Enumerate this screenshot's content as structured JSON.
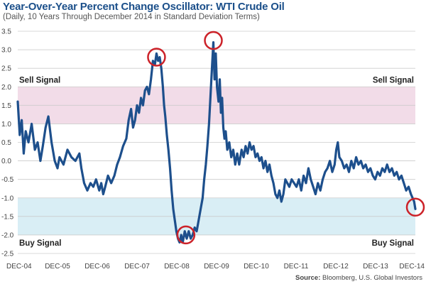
{
  "header": {
    "title": "Year-Over-Year Percent Change Oscillator: WTI Crude Oil",
    "subtitle": "(Daily, 10 Years Through December 2014 in Standard Deviation Terms)"
  },
  "footer": {
    "source_label": "Source:",
    "source_text": "Bloomberg, U.S. Global Investors"
  },
  "colors": {
    "line": "#1d4f8c",
    "sell_band": "#f2dce8",
    "buy_band": "#d9eef5",
    "highlight_circle": "#cc2229",
    "grid": "#cccccc"
  },
  "chart_data": {
    "type": "line",
    "title": "Year-Over-Year Percent Change Oscillator: WTI Crude Oil",
    "subtitle": "(Daily, 10 Years Through December 2014 in Standard Deviation Terms)",
    "xlabel": "",
    "ylabel": "",
    "ylim": [
      -2.5,
      3.5
    ],
    "yticks": [
      "3.5",
      "3.0",
      "2.5",
      "2.0",
      "1.5",
      "1.0",
      "0.5",
      "0.0",
      "-0.5",
      "-1.0",
      "-1.5",
      "-2.0",
      "-2.5"
    ],
    "xlim": [
      2004.95,
      2014.95
    ],
    "xticks": [
      {
        "label": "DEC-04",
        "x": 2004.95
      },
      {
        "label": "DEC-05",
        "x": 2005.95
      },
      {
        "label": "DEC-06",
        "x": 2006.95
      },
      {
        "label": "DEC-07",
        "x": 2007.95
      },
      {
        "label": "DEC-08",
        "x": 2008.95
      },
      {
        "label": "DEC-09",
        "x": 2009.95
      },
      {
        "label": "DEC-10",
        "x": 2010.95
      },
      {
        "label": "DEC-11",
        "x": 2011.95
      },
      {
        "label": "DEC-12",
        "x": 2012.95
      },
      {
        "label": "DEC-13",
        "x": 2013.95
      },
      {
        "label": "DEC-14",
        "x": 2014.95
      }
    ],
    "grid": true,
    "bands": [
      {
        "name": "Sell Signal",
        "from": 1.0,
        "to": 2.0
      },
      {
        "name": "Buy Signal",
        "from": -2.0,
        "to": -1.0
      }
    ],
    "band_labels": {
      "sell_left": "Sell Signal",
      "sell_right": "Sell Signal",
      "buy_left": "Buy Signal",
      "buy_right": "Buy Signal"
    },
    "series": [
      {
        "points": [
          [
            2004.95,
            1.6
          ],
          [
            2005.0,
            0.7
          ],
          [
            2005.05,
            1.1
          ],
          [
            2005.1,
            0.2
          ],
          [
            2005.15,
            0.8
          ],
          [
            2005.22,
            0.5
          ],
          [
            2005.3,
            1.0
          ],
          [
            2005.38,
            0.3
          ],
          [
            2005.45,
            0.5
          ],
          [
            2005.52,
            0.0
          ],
          [
            2005.58,
            0.4
          ],
          [
            2005.65,
            0.9
          ],
          [
            2005.72,
            1.2
          ],
          [
            2005.8,
            0.5
          ],
          [
            2005.88,
            0.0
          ],
          [
            2005.95,
            -0.2
          ],
          [
            2006.0,
            0.1
          ],
          [
            2006.1,
            -0.1
          ],
          [
            2006.2,
            0.3
          ],
          [
            2006.3,
            0.1
          ],
          [
            2006.4,
            0.0
          ],
          [
            2006.5,
            0.2
          ],
          [
            2006.55,
            -0.2
          ],
          [
            2006.62,
            -0.6
          ],
          [
            2006.7,
            -0.8
          ],
          [
            2006.78,
            -0.6
          ],
          [
            2006.85,
            -0.7
          ],
          [
            2006.92,
            -0.5
          ],
          [
            2007.0,
            -0.8
          ],
          [
            2007.05,
            -0.6
          ],
          [
            2007.1,
            -0.9
          ],
          [
            2007.15,
            -0.7
          ],
          [
            2007.22,
            -0.4
          ],
          [
            2007.3,
            -0.6
          ],
          [
            2007.38,
            -0.4
          ],
          [
            2007.45,
            -0.1
          ],
          [
            2007.52,
            0.1
          ],
          [
            2007.6,
            0.4
          ],
          [
            2007.68,
            0.6
          ],
          [
            2007.74,
            1.1
          ],
          [
            2007.8,
            1.4
          ],
          [
            2007.85,
            0.9
          ],
          [
            2007.9,
            1.1
          ],
          [
            2007.95,
            1.5
          ],
          [
            2008.0,
            1.3
          ],
          [
            2008.05,
            1.7
          ],
          [
            2008.1,
            1.5
          ],
          [
            2008.15,
            1.9
          ],
          [
            2008.2,
            2.0
          ],
          [
            2008.25,
            1.8
          ],
          [
            2008.3,
            2.2
          ],
          [
            2008.35,
            2.7
          ],
          [
            2008.4,
            2.6
          ],
          [
            2008.44,
            2.9
          ],
          [
            2008.48,
            2.7
          ],
          [
            2008.52,
            2.8
          ],
          [
            2008.56,
            2.5
          ],
          [
            2008.6,
            2.0
          ],
          [
            2008.63,
            1.5
          ],
          [
            2008.66,
            1.2
          ],
          [
            2008.7,
            0.7
          ],
          [
            2008.74,
            0.3
          ],
          [
            2008.78,
            -0.2
          ],
          [
            2008.82,
            -0.8
          ],
          [
            2008.86,
            -1.3
          ],
          [
            2008.9,
            -1.6
          ],
          [
            2008.94,
            -1.9
          ],
          [
            2008.98,
            -2.1
          ],
          [
            2009.02,
            -2.2
          ],
          [
            2009.06,
            -2.0
          ],
          [
            2009.1,
            -2.2
          ],
          [
            2009.15,
            -1.9
          ],
          [
            2009.2,
            -2.1
          ],
          [
            2009.25,
            -1.9
          ],
          [
            2009.3,
            -2.1
          ],
          [
            2009.35,
            -2.0
          ],
          [
            2009.4,
            -1.8
          ],
          [
            2009.45,
            -1.9
          ],
          [
            2009.5,
            -1.6
          ],
          [
            2009.55,
            -1.3
          ],
          [
            2009.6,
            -1.0
          ],
          [
            2009.64,
            -0.5
          ],
          [
            2009.68,
            -0.1
          ],
          [
            2009.72,
            0.4
          ],
          [
            2009.76,
            1.0
          ],
          [
            2009.8,
            1.8
          ],
          [
            2009.84,
            2.6
          ],
          [
            2009.87,
            3.2
          ],
          [
            2009.9,
            2.2
          ],
          [
            2009.93,
            2.9
          ],
          [
            2009.96,
            2.0
          ],
          [
            2010.0,
            1.6
          ],
          [
            2010.03,
            2.2
          ],
          [
            2010.06,
            1.3
          ],
          [
            2010.09,
            1.7
          ],
          [
            2010.12,
            0.9
          ],
          [
            2010.15,
            0.6
          ],
          [
            2010.18,
            0.8
          ],
          [
            2010.22,
            0.3
          ],
          [
            2010.27,
            0.5
          ],
          [
            2010.32,
            0.1
          ],
          [
            2010.37,
            0.3
          ],
          [
            2010.42,
            -0.1
          ],
          [
            2010.47,
            0.2
          ],
          [
            2010.52,
            -0.1
          ],
          [
            2010.58,
            0.3
          ],
          [
            2010.63,
            0.1
          ],
          [
            2010.68,
            0.4
          ],
          [
            2010.73,
            0.2
          ],
          [
            2010.78,
            0.5
          ],
          [
            2010.83,
            0.3
          ],
          [
            2010.88,
            0.4
          ],
          [
            2010.93,
            0.1
          ],
          [
            2010.98,
            0.2
          ],
          [
            2011.03,
            0.0
          ],
          [
            2011.08,
            0.1
          ],
          [
            2011.13,
            -0.2
          ],
          [
            2011.18,
            0.0
          ],
          [
            2011.23,
            -0.3
          ],
          [
            2011.28,
            -0.1
          ],
          [
            2011.33,
            -0.4
          ],
          [
            2011.38,
            -0.6
          ],
          [
            2011.43,
            -0.9
          ],
          [
            2011.48,
            -1.0
          ],
          [
            2011.53,
            -0.8
          ],
          [
            2011.58,
            -1.1
          ],
          [
            2011.63,
            -0.9
          ],
          [
            2011.68,
            -0.5
          ],
          [
            2011.73,
            -0.6
          ],
          [
            2011.78,
            -0.7
          ],
          [
            2011.84,
            -0.5
          ],
          [
            2011.9,
            -0.6
          ],
          [
            2011.96,
            -0.7
          ],
          [
            2012.02,
            -0.5
          ],
          [
            2012.08,
            -0.8
          ],
          [
            2012.14,
            -0.4
          ],
          [
            2012.2,
            -0.6
          ],
          [
            2012.26,
            -0.2
          ],
          [
            2012.32,
            -0.5
          ],
          [
            2012.38,
            -0.7
          ],
          [
            2012.44,
            -0.9
          ],
          [
            2012.5,
            -0.6
          ],
          [
            2012.56,
            -0.8
          ],
          [
            2012.62,
            -0.5
          ],
          [
            2012.68,
            -0.3
          ],
          [
            2012.74,
            -0.2
          ],
          [
            2012.8,
            0.0
          ],
          [
            2012.86,
            -0.3
          ],
          [
            2012.92,
            -0.1
          ],
          [
            2012.96,
            0.3
          ],
          [
            2013.0,
            0.5
          ],
          [
            2013.04,
            0.1
          ],
          [
            2013.1,
            0.0
          ],
          [
            2013.16,
            -0.2
          ],
          [
            2013.22,
            -0.1
          ],
          [
            2013.28,
            -0.3
          ],
          [
            2013.34,
            0.0
          ],
          [
            2013.4,
            -0.2
          ],
          [
            2013.46,
            0.1
          ],
          [
            2013.52,
            -0.1
          ],
          [
            2013.58,
            0.0
          ],
          [
            2013.64,
            -0.2
          ],
          [
            2013.7,
            -0.1
          ],
          [
            2013.76,
            -0.3
          ],
          [
            2013.82,
            -0.2
          ],
          [
            2013.88,
            -0.4
          ],
          [
            2013.94,
            -0.5
          ],
          [
            2014.0,
            -0.3
          ],
          [
            2014.06,
            -0.4
          ],
          [
            2014.12,
            -0.2
          ],
          [
            2014.18,
            -0.3
          ],
          [
            2014.24,
            -0.1
          ],
          [
            2014.3,
            -0.3
          ],
          [
            2014.36,
            -0.2
          ],
          [
            2014.42,
            -0.4
          ],
          [
            2014.48,
            -0.3
          ],
          [
            2014.54,
            -0.5
          ],
          [
            2014.6,
            -0.4
          ],
          [
            2014.66,
            -0.6
          ],
          [
            2014.72,
            -0.8
          ],
          [
            2014.78,
            -0.7
          ],
          [
            2014.84,
            -0.9
          ],
          [
            2014.88,
            -1.0
          ],
          [
            2014.92,
            -1.1
          ],
          [
            2014.95,
            -1.3
          ]
        ]
      }
    ],
    "highlights": [
      {
        "x": 2008.44,
        "y": 2.8
      },
      {
        "x": 2009.87,
        "y": 3.25
      },
      {
        "x": 2009.18,
        "y": -2.0
      },
      {
        "x": 2014.95,
        "y": -1.25
      }
    ]
  }
}
